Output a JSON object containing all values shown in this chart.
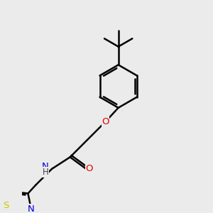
{
  "background_color": "#ebebeb",
  "bond_color": "#000000",
  "atom_colors": {
    "O": "#e00000",
    "N": "#0000e0",
    "S": "#c8c800",
    "H": "#404040",
    "C": "#000000"
  },
  "bond_width": 1.8,
  "figsize": [
    3.0,
    3.0
  ],
  "dpi": 100
}
